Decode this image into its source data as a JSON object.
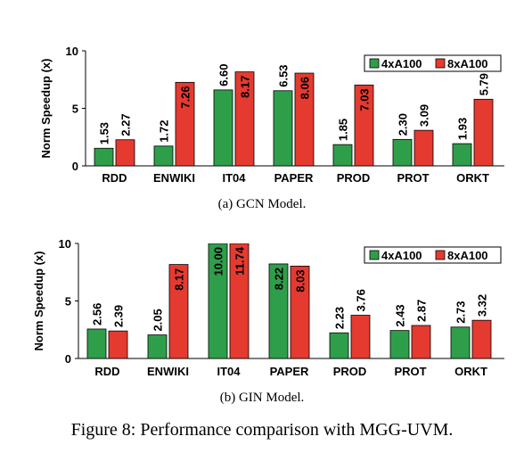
{
  "figure_caption": "Figure 8: Performance comparison with MGG-UVM.",
  "colors": {
    "green": "#2f9e4a",
    "red": "#e53a2f",
    "axis": "#000000"
  },
  "chart_data": [
    {
      "type": "bar",
      "caption": "(a) GCN Model.",
      "ylabel": "Norm Speedup (x)",
      "ylim": [
        0,
        10
      ],
      "yticks": [
        0,
        5,
        10
      ],
      "legend_position": "top-right",
      "categories": [
        "RDD",
        "ENWIKI",
        "IT04",
        "PAPER",
        "PROD",
        "PROT",
        "ORKT"
      ],
      "series": [
        {
          "name": "4xA100",
          "color": "#2f9e4a",
          "values": [
            1.53,
            1.72,
            6.6,
            6.53,
            1.85,
            2.3,
            1.93
          ],
          "labels": [
            "1.53",
            "1.72",
            "6.60",
            "6.53",
            "1.85",
            "2.30",
            "1.93"
          ]
        },
        {
          "name": "8xA100",
          "color": "#e53a2f",
          "values": [
            2.27,
            7.26,
            8.17,
            8.06,
            7.03,
            3.09,
            5.79
          ],
          "labels": [
            "2.27",
            "7.26",
            "8.17",
            "8.06",
            "7.03",
            "3.09",
            "5.79"
          ]
        }
      ]
    },
    {
      "type": "bar",
      "caption": "(b) GIN Model.",
      "ylabel": "Norm Speedup (x)",
      "ylim": [
        0,
        10
      ],
      "yticks": [
        0,
        5,
        10
      ],
      "legend_position": "top-right",
      "categories": [
        "RDD",
        "ENWIKI",
        "IT04",
        "PAPER",
        "PROD",
        "PROT",
        "ORKT"
      ],
      "series": [
        {
          "name": "4xA100",
          "color": "#2f9e4a",
          "values": [
            2.56,
            2.05,
            10.0,
            8.22,
            2.23,
            2.43,
            2.73
          ],
          "labels": [
            "2.56",
            "2.05",
            "10.00",
            "8.22",
            "2.23",
            "2.43",
            "2.73"
          ]
        },
        {
          "name": "8xA100",
          "color": "#e53a2f",
          "values": [
            2.39,
            8.17,
            11.74,
            8.03,
            3.76,
            2.87,
            3.32
          ],
          "labels": [
            "2.39",
            "8.17",
            "11.74",
            "8.03",
            "3.76",
            "2.87",
            "3.32"
          ]
        }
      ]
    }
  ]
}
